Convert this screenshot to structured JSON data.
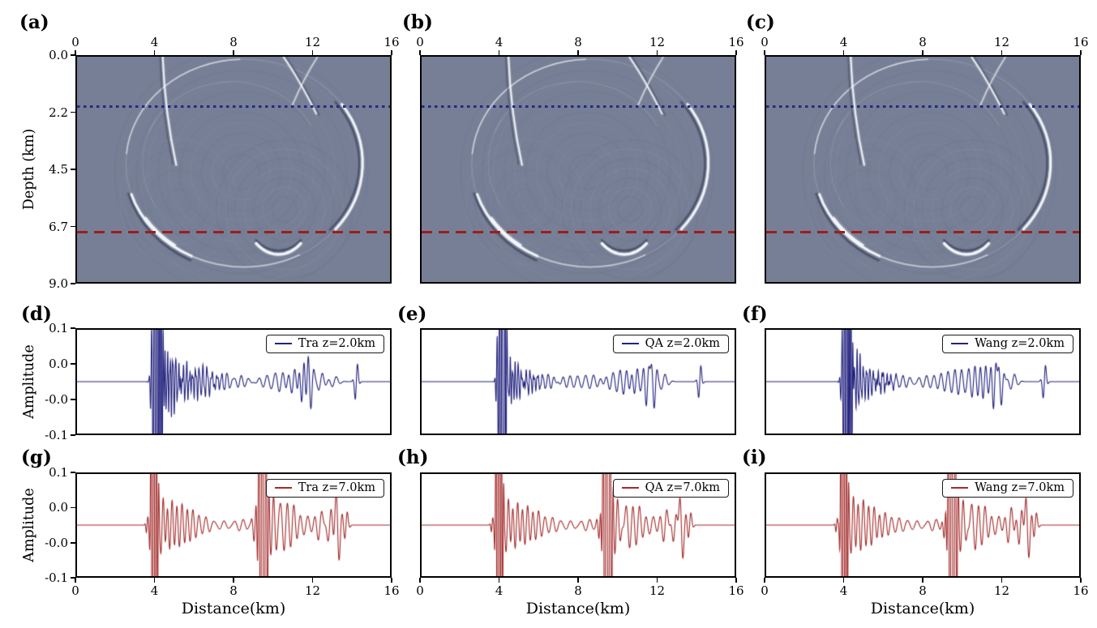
{
  "figure": {
    "background": "#ffffff",
    "spine_color": "#000000",
    "navy": "#232a87",
    "dark_red": "#a01c1c",
    "trace_blue": "#22227e",
    "trace_red": "#a32a2a"
  },
  "layout_labels": {
    "depth_axis_label": "Depth (km)",
    "amplitude_axis_label": "Amplitude",
    "distance_axis_label": "Distance(km)"
  },
  "panel_letters": [
    "(a)",
    "(b)",
    "(c)",
    "(d)",
    "(e)",
    "(f)",
    "(g)",
    "(h)",
    "(i)"
  ],
  "wavefield_art": {
    "bg": "#767f95",
    "light": "#f2f6fa",
    "dark": "#39415a",
    "variants": [
      0,
      0.06,
      -0.06
    ],
    "ripples": [
      [
        8.4,
        4.6,
        11,
        0.7,
        0.42,
        1.32,
        0.045
      ],
      [
        10.6,
        6.1,
        7,
        0.5,
        0.38,
        1.25,
        0.05
      ],
      [
        5.2,
        5.8,
        6,
        0.5,
        0.4,
        1.2,
        0.04
      ]
    ],
    "arcs": [
      [
        8.55,
        4.25,
        6.05,
        4.15,
        0,
        360,
        1.5,
        "L",
        0.14,
        0
      ],
      [
        8.55,
        4.25,
        6.05,
        4.15,
        185,
        268,
        1.6,
        "L",
        0.4,
        1
      ],
      [
        8.55,
        4.25,
        6.18,
        4.34,
        116,
        164,
        2.4,
        "D",
        0.5,
        2
      ],
      [
        8.55,
        4.25,
        6.05,
        4.15,
        116,
        163,
        2.6,
        "L",
        0.9,
        2
      ],
      [
        8.55,
        4.25,
        6.0,
        4.1,
        126,
        148,
        3.4,
        "L",
        1.0,
        3
      ],
      [
        8.55,
        4.25,
        6.05,
        4.15,
        62,
        116,
        2.0,
        "L",
        0.3,
        1
      ],
      [
        8.55,
        4.25,
        5.88,
        4.0,
        -38,
        42,
        2.2,
        "D",
        0.5,
        2
      ],
      [
        8.55,
        4.25,
        6.05,
        4.15,
        -35,
        40,
        2.8,
        "L",
        0.9,
        2
      ],
      [
        10.3,
        5.3,
        2.05,
        2.45,
        55,
        125,
        2.4,
        "D",
        0.55,
        2
      ],
      [
        10.3,
        5.3,
        2.05,
        2.6,
        55,
        125,
        3.0,
        "L",
        0.95,
        2
      ],
      [
        7.9,
        4.1,
        4.5,
        3.1,
        200,
        335,
        1.4,
        "L",
        0.12,
        0
      ],
      [
        8.55,
        4.25,
        5.2,
        3.5,
        150,
        210,
        1.3,
        "L",
        0.1,
        0
      ]
    ],
    "curves": [
      [
        4.38,
        0,
        4.5,
        2.3,
        5.08,
        4.35,
        2.0,
        "L",
        0.85
      ],
      [
        4.25,
        0,
        4.33,
        2.2,
        4.9,
        4.3,
        1.3,
        "D",
        0.4
      ],
      [
        10.55,
        0,
        11.35,
        0.9,
        12.25,
        2.3,
        1.8,
        "L",
        0.8
      ],
      [
        10.7,
        0,
        11.5,
        0.95,
        12.4,
        2.35,
        1.2,
        "D",
        0.4
      ],
      [
        12.3,
        0,
        11.6,
        0.85,
        11.0,
        1.95,
        1.5,
        "L",
        0.55
      ]
    ]
  },
  "chart_data": [
    {
      "id": "a",
      "type": "heatmap",
      "content": "seismic wavefield snapshot",
      "x_range": [
        0,
        16
      ],
      "x_axis_position": "top",
      "x_ticks": [
        "0",
        "4",
        "8",
        "12",
        "16"
      ],
      "y_label": "Depth (km)",
      "y_range": [
        0,
        9
      ],
      "y_ticks": [
        "0.0",
        "2.2",
        "4.5",
        "6.7",
        "9.0"
      ],
      "overlay_lines": [
        {
          "depth_km": 2.0,
          "style": "dotted",
          "color": "#232a87"
        },
        {
          "depth_km": 7.0,
          "style": "dashed",
          "color": "#a01c1c"
        }
      ]
    },
    {
      "id": "b",
      "type": "heatmap",
      "content": "seismic wavefield snapshot",
      "x_range": [
        0,
        16
      ],
      "x_axis_position": "top",
      "x_ticks": [
        "0",
        "4",
        "8",
        "12",
        "16"
      ],
      "y_range": [
        0,
        9
      ],
      "overlay_lines": [
        {
          "depth_km": 2.0,
          "style": "dotted",
          "color": "#232a87"
        },
        {
          "depth_km": 7.0,
          "style": "dashed",
          "color": "#a01c1c"
        }
      ]
    },
    {
      "id": "c",
      "type": "heatmap",
      "content": "seismic wavefield snapshot",
      "x_range": [
        0,
        16
      ],
      "x_axis_position": "top",
      "x_ticks": [
        "0",
        "4",
        "8",
        "12",
        "16"
      ],
      "y_range": [
        0,
        9
      ],
      "overlay_lines": [
        {
          "depth_km": 2.0,
          "style": "dotted",
          "color": "#232a87"
        },
        {
          "depth_km": 7.0,
          "style": "dashed",
          "color": "#a01c1c"
        }
      ]
    },
    {
      "id": "d",
      "type": "line",
      "series": [
        {
          "name": "Tra z=2.0km",
          "color": "#22227e"
        }
      ],
      "x_range": [
        0,
        16
      ],
      "ylim": [
        -0.1,
        0.1
      ],
      "y_label": "Amplitude",
      "y_ticks": [
        "0.1",
        "0.0",
        "-0.0",
        "-0.1"
      ],
      "legend_position": "upper right",
      "wave_packets": [
        [
          3.78,
          0.06,
          0.028,
          9
        ],
        [
          4.05,
          0.17,
          0.6,
          7.5
        ],
        [
          4.27,
          0.12,
          0.5,
          9
        ],
        [
          4.6,
          0.25,
          0.065,
          7
        ],
        [
          4.7,
          0.5,
          0.018,
          14
        ],
        [
          5.0,
          0.4,
          0.05,
          6.5
        ],
        [
          5.55,
          0.5,
          0.038,
          6
        ],
        [
          5.6,
          0.7,
          0.012,
          12
        ],
        [
          6.2,
          0.6,
          0.024,
          5
        ],
        [
          6.6,
          0.8,
          0.008,
          10
        ],
        [
          7.1,
          0.8,
          0.016,
          4
        ],
        [
          8.3,
          1.0,
          0.011,
          2.8
        ],
        [
          9.6,
          0.8,
          0.012,
          2.5
        ],
        [
          10.45,
          0.5,
          0.016,
          2.6
        ],
        [
          11.05,
          0.35,
          0.028,
          2.8
        ],
        [
          11.55,
          0.25,
          0.05,
          3.6
        ],
        [
          11.88,
          0.22,
          -0.058,
          3.2
        ],
        [
          12.45,
          0.3,
          0.018,
          2.5
        ],
        [
          13.15,
          0.3,
          0.011,
          2.2
        ],
        [
          14.28,
          0.12,
          0.044,
          3.5
        ]
      ]
    },
    {
      "id": "e",
      "type": "line",
      "series": [
        {
          "name": "QA z=2.0km",
          "color": "#22227e"
        }
      ],
      "x_range": [
        0,
        16
      ],
      "ylim": [
        -0.1,
        0.1
      ],
      "legend_position": "upper right",
      "wave_packets": [
        [
          3.82,
          0.05,
          0.024,
          9
        ],
        [
          4.08,
          0.15,
          0.65,
          8
        ],
        [
          4.24,
          0.1,
          0.5,
          10
        ],
        [
          4.5,
          0.2,
          0.045,
          7.5
        ],
        [
          4.6,
          0.4,
          0.012,
          13
        ],
        [
          4.9,
          0.3,
          0.03,
          6.5
        ],
        [
          5.5,
          0.45,
          0.02,
          5
        ],
        [
          5.5,
          0.6,
          0.008,
          11
        ],
        [
          6.4,
          0.6,
          0.013,
          3.6
        ],
        [
          7.5,
          0.8,
          0.01,
          2.7
        ],
        [
          8.7,
          0.7,
          0.013,
          2.5
        ],
        [
          9.7,
          0.5,
          0.017,
          2.7
        ],
        [
          10.4,
          0.4,
          0.022,
          2.9
        ],
        [
          10.95,
          0.3,
          0.028,
          3.1
        ],
        [
          11.55,
          0.22,
          0.052,
          3.4
        ],
        [
          11.82,
          0.2,
          -0.062,
          3.2
        ],
        [
          12.35,
          0.3,
          0.016,
          2.4
        ],
        [
          14.22,
          0.12,
          0.04,
          3.5
        ]
      ]
    },
    {
      "id": "f",
      "type": "line",
      "series": [
        {
          "name": "Wang z=2.0km",
          "color": "#22227e"
        }
      ],
      "x_range": [
        0,
        16
      ],
      "ylim": [
        -0.1,
        0.1
      ],
      "legend_position": "upper right",
      "wave_packets": [
        [
          3.82,
          0.05,
          0.024,
          9
        ],
        [
          4.1,
          0.16,
          0.65,
          8
        ],
        [
          4.3,
          0.11,
          0.48,
          9
        ],
        [
          4.62,
          0.24,
          0.045,
          7
        ],
        [
          4.7,
          0.5,
          0.014,
          13
        ],
        [
          5.1,
          0.42,
          0.028,
          6
        ],
        [
          5.8,
          0.7,
          0.009,
          11
        ],
        [
          5.9,
          0.6,
          0.016,
          4.5
        ],
        [
          6.9,
          0.8,
          0.011,
          3
        ],
        [
          8.1,
          0.8,
          0.012,
          2.6
        ],
        [
          9.2,
          0.5,
          0.016,
          2.8
        ],
        [
          9.9,
          0.45,
          0.022,
          3
        ],
        [
          10.6,
          0.4,
          0.028,
          3.2
        ],
        [
          11.15,
          0.3,
          0.032,
          3.4
        ],
        [
          11.68,
          0.2,
          0.058,
          3.5
        ],
        [
          11.95,
          0.2,
          -0.055,
          3.2
        ],
        [
          12.6,
          0.3,
          0.016,
          2.4
        ],
        [
          14.22,
          0.13,
          0.04,
          3.4
        ]
      ]
    },
    {
      "id": "g",
      "type": "line",
      "series": [
        {
          "name": "Tra z=7.0km",
          "color": "#a32a2a"
        }
      ],
      "x_range": [
        0,
        16
      ],
      "ylim": [
        -0.1,
        0.1
      ],
      "x_label": "Distance(km)",
      "x_ticks": [
        "0",
        "4",
        "8",
        "12",
        "16"
      ],
      "y_label": "Amplitude",
      "y_ticks": [
        "0.1",
        "0.0",
        "-0.0",
        "-0.1"
      ],
      "legend_position": "upper right",
      "wave_packets": [
        [
          3.58,
          0.08,
          0.018,
          6
        ],
        [
          3.88,
          0.11,
          0.55,
          7
        ],
        [
          4.03,
          0.1,
          0.5,
          8
        ],
        [
          4.35,
          0.25,
          0.062,
          3.8
        ],
        [
          4.8,
          0.3,
          0.052,
          3.6
        ],
        [
          5.3,
          0.35,
          0.042,
          3.4
        ],
        [
          5.85,
          0.35,
          0.028,
          3.2
        ],
        [
          6.5,
          0.5,
          0.014,
          2.8
        ],
        [
          7.4,
          0.7,
          0.009,
          2.2
        ],
        [
          8.4,
          0.5,
          0.011,
          2.4
        ],
        [
          9.1,
          0.15,
          0.035,
          4
        ],
        [
          9.42,
          0.14,
          0.55,
          6
        ],
        [
          9.62,
          0.14,
          0.42,
          6
        ],
        [
          9.98,
          0.3,
          0.055,
          3.6
        ],
        [
          10.5,
          0.3,
          -0.046,
          2.6
        ],
        [
          11.0,
          0.35,
          0.042,
          2.8
        ],
        [
          11.7,
          0.4,
          0.018,
          2.4
        ],
        [
          12.42,
          0.3,
          0.032,
          2.6
        ],
        [
          12.92,
          0.25,
          0.038,
          2.8
        ],
        [
          13.32,
          0.2,
          -0.082,
          2.8
        ],
        [
          13.75,
          0.15,
          0.032,
          3.2
        ]
      ]
    },
    {
      "id": "h",
      "type": "line",
      "series": [
        {
          "name": "QA z=7.0km",
          "color": "#a32a2a"
        }
      ],
      "x_range": [
        0,
        16
      ],
      "ylim": [
        -0.1,
        0.1
      ],
      "x_label": "Distance(km)",
      "x_ticks": [
        "0",
        "4",
        "8",
        "12",
        "16"
      ],
      "legend_position": "upper right",
      "wave_packets": [
        [
          3.6,
          0.08,
          0.016,
          6
        ],
        [
          3.9,
          0.11,
          0.55,
          7
        ],
        [
          4.05,
          0.1,
          0.5,
          8
        ],
        [
          4.38,
          0.25,
          0.058,
          3.7
        ],
        [
          4.85,
          0.3,
          0.05,
          3.5
        ],
        [
          5.35,
          0.35,
          0.04,
          3.3
        ],
        [
          5.9,
          0.35,
          0.026,
          3.1
        ],
        [
          6.6,
          0.5,
          0.013,
          2.7
        ],
        [
          7.5,
          0.7,
          0.009,
          2.2
        ],
        [
          8.5,
          0.5,
          0.011,
          2.4
        ],
        [
          9.12,
          0.15,
          0.033,
          4
        ],
        [
          9.4,
          0.14,
          0.55,
          6
        ],
        [
          9.6,
          0.14,
          0.42,
          6
        ],
        [
          9.95,
          0.28,
          0.052,
          3.6
        ],
        [
          10.55,
          0.3,
          -0.042,
          2.5
        ],
        [
          11.05,
          0.35,
          0.04,
          2.7
        ],
        [
          11.75,
          0.4,
          0.017,
          2.4
        ],
        [
          12.45,
          0.28,
          0.036,
          2.7
        ],
        [
          12.95,
          0.25,
          0.04,
          2.9
        ],
        [
          13.28,
          0.2,
          -0.08,
          2.8
        ],
        [
          13.7,
          0.15,
          0.03,
          3.2
        ]
      ]
    },
    {
      "id": "i",
      "type": "line",
      "series": [
        {
          "name": "Wang z=7.0km",
          "color": "#a32a2a"
        }
      ],
      "x_range": [
        0,
        16
      ],
      "ylim": [
        -0.1,
        0.1
      ],
      "x_label": "Distance(km)",
      "x_ticks": [
        "0",
        "4",
        "8",
        "12",
        "16"
      ],
      "legend_position": "upper right",
      "wave_packets": [
        [
          3.6,
          0.08,
          0.016,
          6
        ],
        [
          3.92,
          0.11,
          0.55,
          7
        ],
        [
          4.07,
          0.1,
          0.5,
          8
        ],
        [
          4.4,
          0.26,
          0.06,
          3.7
        ],
        [
          4.9,
          0.32,
          0.05,
          3.4
        ],
        [
          5.45,
          0.35,
          0.038,
          3.2
        ],
        [
          6.0,
          0.35,
          0.024,
          3.0
        ],
        [
          6.7,
          0.5,
          0.012,
          2.6
        ],
        [
          7.6,
          0.7,
          0.009,
          2.2
        ],
        [
          8.6,
          0.5,
          0.011,
          2.4
        ],
        [
          9.15,
          0.15,
          0.033,
          4
        ],
        [
          9.43,
          0.14,
          0.55,
          6
        ],
        [
          9.63,
          0.14,
          0.42,
          6
        ],
        [
          10.0,
          0.28,
          0.05,
          3.5
        ],
        [
          10.6,
          0.3,
          -0.046,
          2.5
        ],
        [
          11.1,
          0.35,
          0.04,
          2.7
        ],
        [
          11.8,
          0.4,
          0.018,
          2.4
        ],
        [
          12.45,
          0.28,
          0.04,
          2.7
        ],
        [
          13.0,
          0.25,
          0.045,
          2.9
        ],
        [
          13.35,
          0.2,
          -0.078,
          2.8
        ],
        [
          13.75,
          0.15,
          0.03,
          3.2
        ]
      ]
    }
  ]
}
